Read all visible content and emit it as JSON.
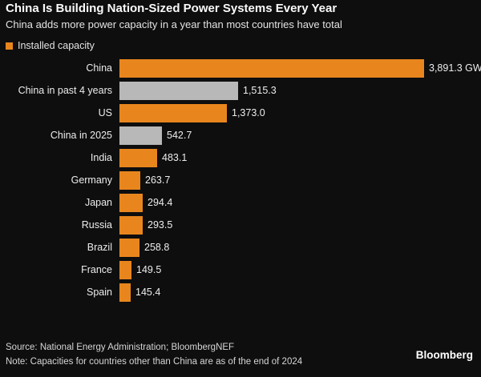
{
  "header": {
    "title": "China Is Building Nation-Sized Power Systems Every Year",
    "subtitle": "China adds more power capacity in a year than most countries have total"
  },
  "legend": {
    "label": "Installed capacity",
    "color": "#e8861d"
  },
  "chart_data": {
    "type": "bar",
    "orientation": "horizontal",
    "title": "China Is Building Nation-Sized Power Systems Every Year",
    "subtitle": "China adds more power capacity in a year than most countries have total",
    "unit": "GW",
    "xlim": [
      0,
      4000
    ],
    "grid": false,
    "legend_position": "top-left",
    "categories": [
      "China",
      "China in past 4 years",
      "US",
      "China in 2025",
      "India",
      "Germany",
      "Japan",
      "Russia",
      "Brazil",
      "France",
      "Spain"
    ],
    "values": [
      3891.3,
      1515.3,
      1373.0,
      542.7,
      483.1,
      263.7,
      294.4,
      293.5,
      258.8,
      149.5,
      145.4
    ],
    "value_labels": [
      "3,891.3 GW",
      "1,515.3",
      "1,373.0",
      "542.7",
      "483.1",
      "263.7",
      "294.4",
      "293.5",
      "258.8",
      "149.5",
      "145.4"
    ],
    "bar_colors": [
      "#e8861d",
      "#b8b8b8",
      "#e8861d",
      "#b8b8b8",
      "#e8861d",
      "#e8861d",
      "#e8861d",
      "#e8861d",
      "#e8861d",
      "#e8861d",
      "#e8861d"
    ],
    "colors": {
      "highlight": "#e8861d",
      "china_aggregate": "#b8b8b8",
      "background": "#0e0e0f"
    }
  },
  "footer": {
    "source": "Source: National Energy Administration; BloombergNEF",
    "note": "Note: Capacities for countries other than China are as of the end of 2024",
    "brand": "Bloomberg"
  }
}
